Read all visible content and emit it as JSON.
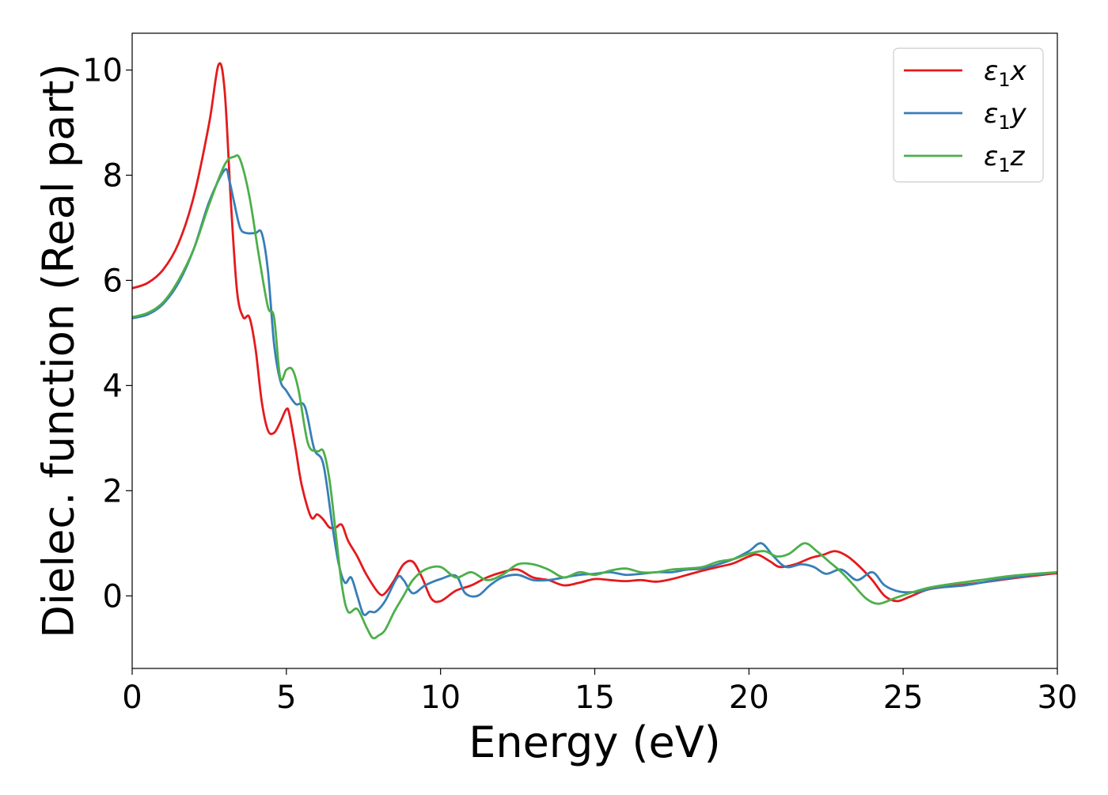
{
  "chart_data": {
    "type": "line",
    "title": "",
    "xlabel": "Energy (eV)",
    "ylabel": "Dielec. function (Real part)",
    "xlim": [
      0,
      30
    ],
    "ylim": [
      -1.38,
      10.7
    ],
    "xticks": [
      0,
      5,
      10,
      15,
      20,
      25,
      30
    ],
    "yticks": [
      0,
      2,
      4,
      6,
      8,
      10
    ],
    "grid": false,
    "legend": {
      "placement": "top-right"
    },
    "series": [
      {
        "name": "ε1x",
        "legend": {
          "base": "ε",
          "sub": "1",
          "tail": "x"
        },
        "color": "#e41a1c",
        "x": [
          0,
          0.5,
          1,
          1.5,
          2,
          2.5,
          2.8,
          3.0,
          3.2,
          3.4,
          3.6,
          3.8,
          4.0,
          4.2,
          4.4,
          4.6,
          4.8,
          5.0,
          5.1,
          5.3,
          5.5,
          5.8,
          6.0,
          6.2,
          6.4,
          6.6,
          6.8,
          7.0,
          7.3,
          7.6,
          8.0,
          8.2,
          8.5,
          8.8,
          9.1,
          9.4,
          9.7,
          10.0,
          10.5,
          11.0,
          11.5,
          12.0,
          12.5,
          13.0,
          13.5,
          14.0,
          14.5,
          15.0,
          15.5,
          16.0,
          16.5,
          17.0,
          17.5,
          18.0,
          18.5,
          19.0,
          19.5,
          20.0,
          20.3,
          20.7,
          21.0,
          21.5,
          22.0,
          22.4,
          22.8,
          23.2,
          23.6,
          24.0,
          24.4,
          24.8,
          25.2,
          25.8,
          26.5,
          27.5,
          28.5,
          29.5,
          30
        ],
        "y": [
          5.85,
          5.95,
          6.2,
          6.7,
          7.6,
          9.0,
          10.1,
          9.6,
          7.5,
          5.8,
          5.3,
          5.3,
          4.7,
          3.7,
          3.15,
          3.1,
          3.3,
          3.55,
          3.45,
          2.8,
          2.1,
          1.5,
          1.55,
          1.45,
          1.3,
          1.3,
          1.35,
          1.05,
          0.75,
          0.4,
          0.05,
          0.05,
          0.3,
          0.6,
          0.65,
          0.35,
          -0.05,
          -0.1,
          0.1,
          0.2,
          0.35,
          0.45,
          0.5,
          0.35,
          0.3,
          0.2,
          0.25,
          0.32,
          0.3,
          0.28,
          0.3,
          0.27,
          0.32,
          0.4,
          0.48,
          0.55,
          0.62,
          0.75,
          0.78,
          0.65,
          0.55,
          0.6,
          0.72,
          0.78,
          0.85,
          0.75,
          0.55,
          0.3,
          0.0,
          -0.1,
          -0.02,
          0.12,
          0.18,
          0.25,
          0.33,
          0.4,
          0.43
        ]
      },
      {
        "name": "ε1y",
        "legend": {
          "base": "ε",
          "sub": "1",
          "tail": "y"
        },
        "color": "#377eb8",
        "x": [
          0,
          0.5,
          1,
          1.5,
          2,
          2.5,
          3.0,
          3.15,
          3.3,
          3.5,
          3.7,
          4.0,
          4.2,
          4.4,
          4.6,
          4.8,
          5.0,
          5.3,
          5.6,
          5.9,
          6.2,
          6.5,
          6.7,
          6.9,
          7.1,
          7.3,
          7.5,
          7.7,
          7.9,
          8.2,
          8.6,
          8.8,
          9.1,
          9.5,
          10.0,
          10.5,
          10.8,
          11.2,
          11.6,
          12.0,
          12.5,
          13.0,
          13.5,
          14.0,
          14.5,
          15.0,
          15.5,
          16.0,
          16.5,
          17.0,
          17.5,
          18.0,
          18.5,
          19.0,
          19.5,
          20.0,
          20.4,
          20.8,
          21.2,
          21.7,
          22.1,
          22.5,
          23.0,
          23.5,
          24.0,
          24.4,
          24.9,
          25.5,
          26.0,
          27.0,
          28.0,
          29.0,
          30
        ],
        "y": [
          5.28,
          5.35,
          5.55,
          5.95,
          6.6,
          7.5,
          8.1,
          7.9,
          7.5,
          7.0,
          6.9,
          6.9,
          6.9,
          6.2,
          4.8,
          4.1,
          3.9,
          3.65,
          3.6,
          2.8,
          2.5,
          1.3,
          0.6,
          0.25,
          0.35,
          0.0,
          -0.35,
          -0.3,
          -0.3,
          -0.1,
          0.35,
          0.3,
          0.05,
          0.2,
          0.32,
          0.38,
          0.05,
          0.0,
          0.2,
          0.35,
          0.4,
          0.3,
          0.3,
          0.35,
          0.4,
          0.42,
          0.45,
          0.4,
          0.42,
          0.45,
          0.45,
          0.5,
          0.52,
          0.6,
          0.7,
          0.85,
          1.0,
          0.75,
          0.55,
          0.6,
          0.55,
          0.42,
          0.5,
          0.3,
          0.45,
          0.2,
          0.08,
          0.08,
          0.15,
          0.2,
          0.3,
          0.38,
          0.45
        ]
      },
      {
        "name": "ε1z",
        "legend": {
          "base": "ε",
          "sub": "1",
          "tail": "z"
        },
        "color": "#4daf4a",
        "x": [
          0,
          0.5,
          1,
          1.5,
          2,
          2.5,
          3.0,
          3.3,
          3.5,
          3.8,
          4.1,
          4.4,
          4.6,
          4.8,
          5.0,
          5.2,
          5.4,
          5.7,
          6.0,
          6.2,
          6.4,
          6.6,
          6.8,
          7.0,
          7.3,
          7.6,
          7.8,
          8.0,
          8.2,
          8.5,
          8.8,
          9.1,
          9.5,
          10.0,
          10.5,
          11.0,
          11.5,
          12.0,
          12.5,
          13.0,
          13.5,
          14.0,
          14.5,
          15.0,
          15.5,
          16.0,
          16.5,
          17.0,
          17.5,
          18.0,
          18.5,
          19.0,
          19.5,
          20.0,
          20.5,
          20.9,
          21.3,
          21.8,
          22.2,
          22.6,
          23.0,
          23.4,
          23.8,
          24.2,
          24.7,
          25.2,
          25.8,
          26.5,
          27.5,
          28.5,
          29.5,
          30
        ],
        "y": [
          5.3,
          5.38,
          5.58,
          6.0,
          6.6,
          7.45,
          8.2,
          8.35,
          8.3,
          7.6,
          6.5,
          5.5,
          5.3,
          4.15,
          4.3,
          4.3,
          3.9,
          2.9,
          2.75,
          2.75,
          2.2,
          1.2,
          0.2,
          -0.3,
          -0.25,
          -0.6,
          -0.8,
          -0.75,
          -0.65,
          -0.3,
          0.0,
          0.3,
          0.5,
          0.55,
          0.35,
          0.45,
          0.3,
          0.4,
          0.6,
          0.6,
          0.5,
          0.35,
          0.45,
          0.4,
          0.48,
          0.52,
          0.45,
          0.45,
          0.5,
          0.52,
          0.55,
          0.65,
          0.7,
          0.8,
          0.85,
          0.75,
          0.8,
          1.0,
          0.85,
          0.65,
          0.45,
          0.2,
          -0.05,
          -0.15,
          -0.05,
          0.05,
          0.15,
          0.22,
          0.3,
          0.38,
          0.43,
          0.45
        ]
      }
    ]
  }
}
